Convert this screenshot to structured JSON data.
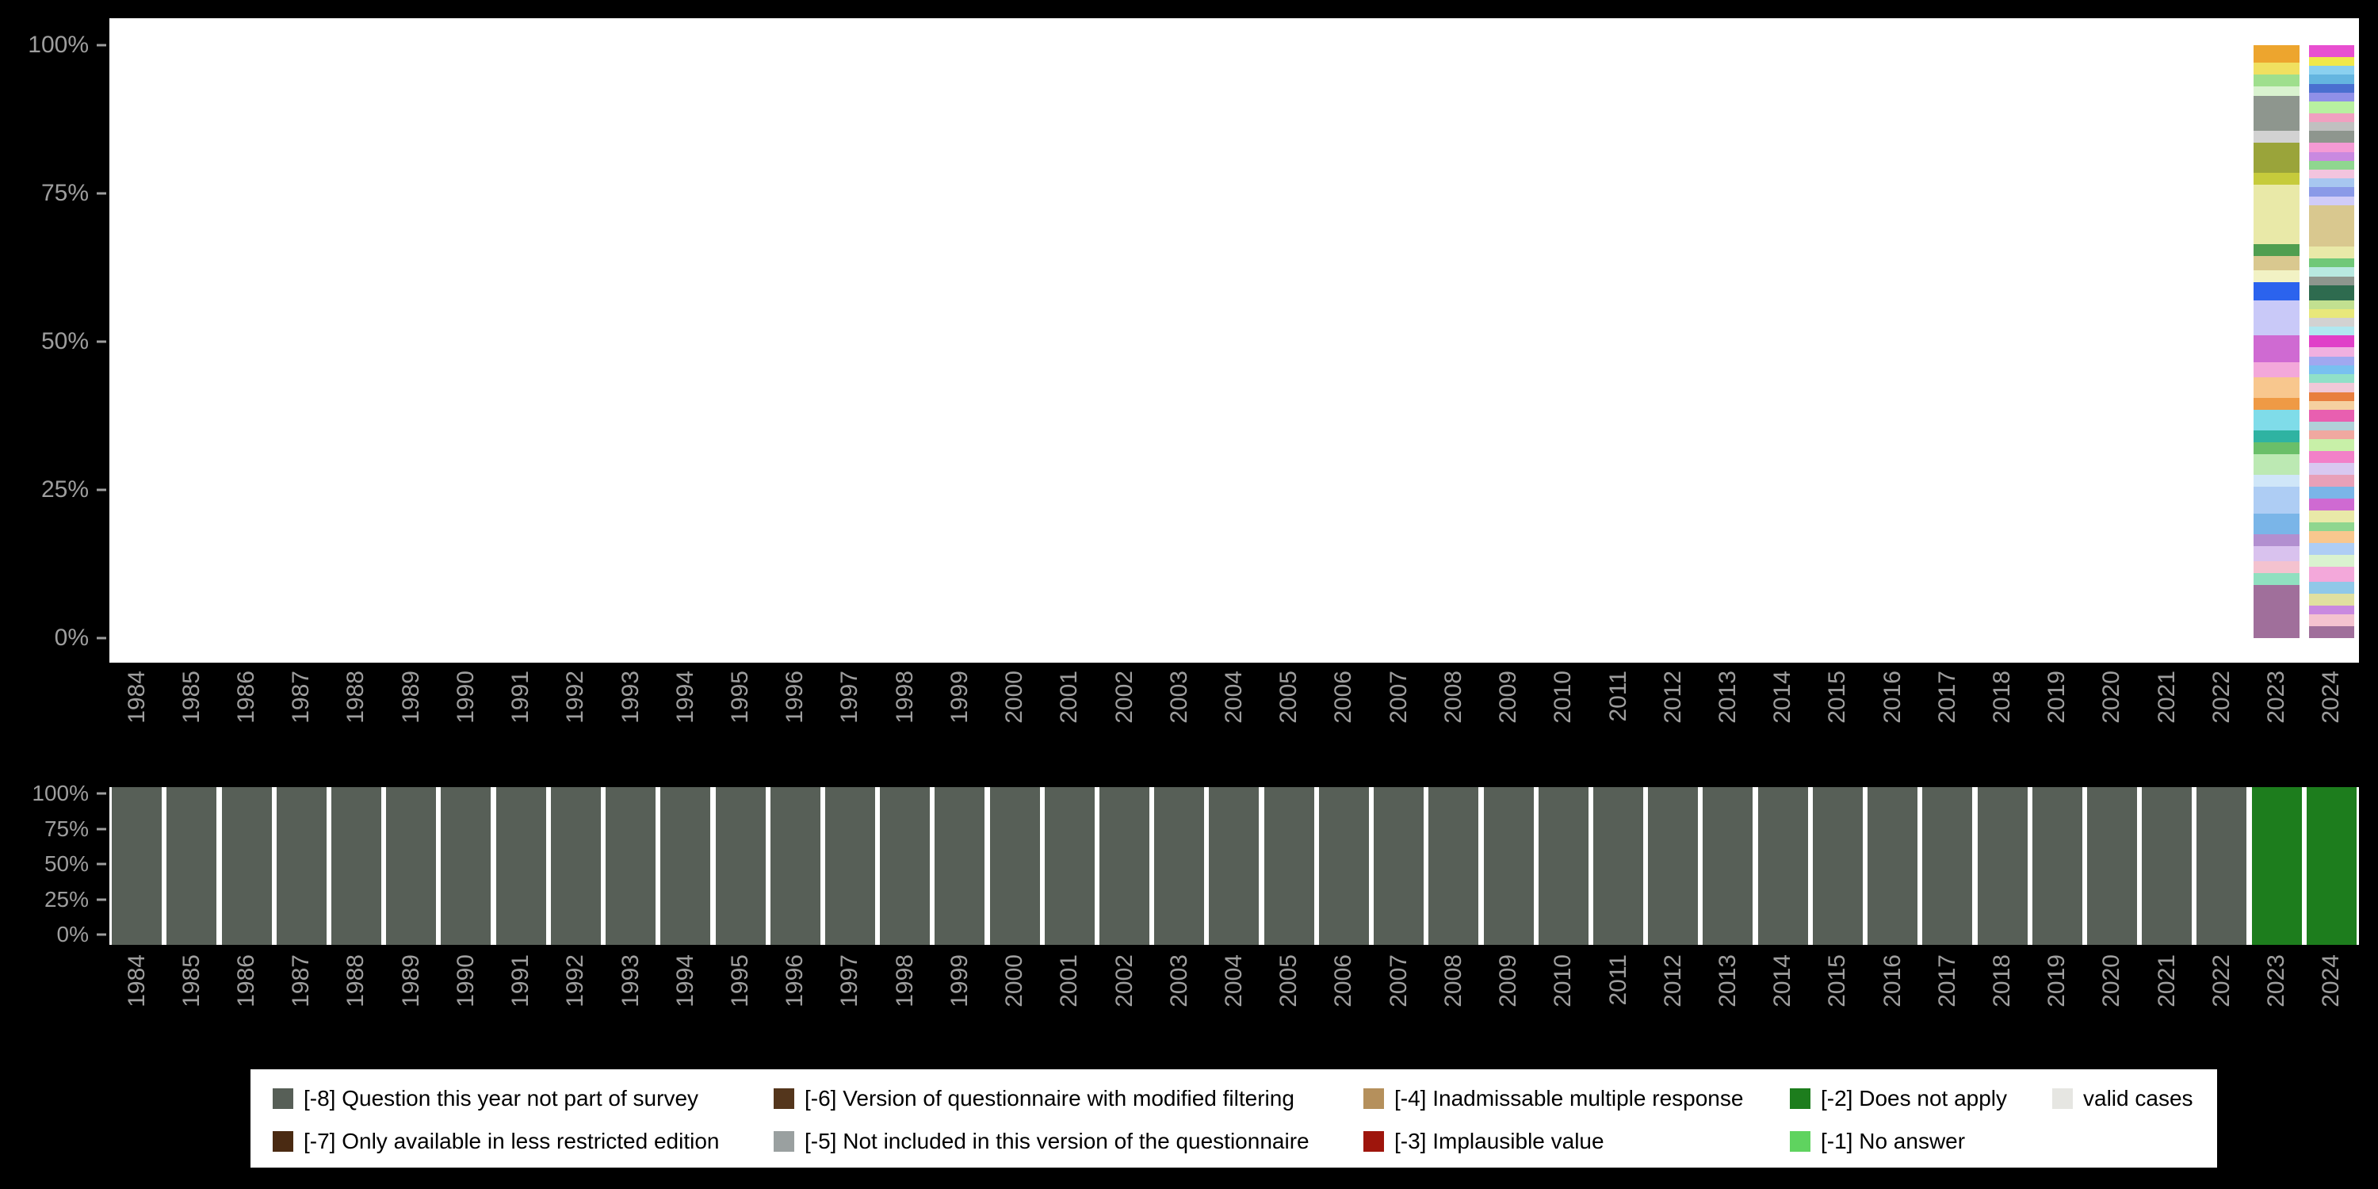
{
  "page": {
    "background": "#000000",
    "plot_background": "#ffffff",
    "axis_label_color": "#9e9e9e"
  },
  "axes": {
    "y_ticks": [
      "100%",
      "75%",
      "50%",
      "25%",
      "0%"
    ],
    "years": [
      "1984",
      "1985",
      "1986",
      "1987",
      "1988",
      "1989",
      "1990",
      "1991",
      "1992",
      "1993",
      "1994",
      "1995",
      "1996",
      "1997",
      "1998",
      "1999",
      "2000",
      "2001",
      "2002",
      "2003",
      "2004",
      "2005",
      "2006",
      "2007",
      "2008",
      "2009",
      "2010",
      "2011",
      "2012",
      "2013",
      "2014",
      "2015",
      "2016",
      "2017",
      "2018",
      "2019",
      "2020",
      "2021",
      "2022",
      "2023",
      "2024"
    ]
  },
  "legend": {
    "position": "bottom",
    "rows": [
      [
        {
          "label": "[-8] Question this year not part of survey",
          "color": "#575f57"
        },
        {
          "label": "[-6] Version of questionnaire with modified filtering",
          "color": "#54361c"
        },
        {
          "label": "[-4] Inadmissable multiple response",
          "color": "#b5905c"
        },
        {
          "label": "[-2] Does not apply",
          "color": "#1d7d1d"
        },
        {
          "label": "valid cases",
          "color": "#e6e6e2"
        }
      ],
      [
        {
          "label": "[-7] Only available in less restricted edition",
          "color": "#4a2a12"
        },
        {
          "label": "[-5] Not included in this version of the questionnaire",
          "color": "#9aa0a0"
        },
        {
          "label": "[-3] Implausible value",
          "color": "#9e150c"
        },
        {
          "label": "[-1] No answer",
          "color": "#5fd35f"
        }
      ]
    ]
  },
  "chart_data": [
    {
      "type": "bar",
      "subtype": "stacked-percentage",
      "id": "valid-category-distribution-by-year",
      "title": "",
      "xlabel": "",
      "ylabel": "",
      "ylim": [
        0,
        100
      ],
      "y_tick_labels": [
        "0%",
        "25%",
        "50%",
        "75%",
        "100%"
      ],
      "grid": false,
      "categories": [
        "1984",
        "1985",
        "1986",
        "1987",
        "1988",
        "1989",
        "1990",
        "1991",
        "1992",
        "1993",
        "1994",
        "1995",
        "1996",
        "1997",
        "1998",
        "1999",
        "2000",
        "2001",
        "2002",
        "2003",
        "2004",
        "2005",
        "2006",
        "2007",
        "2008",
        "2009",
        "2010",
        "2011",
        "2012",
        "2013",
        "2014",
        "2015",
        "2016",
        "2017",
        "2018",
        "2019",
        "2020",
        "2021",
        "2022",
        "2023",
        "2024"
      ],
      "note": "Years 1984-2022 show no bar (question not part of survey). 2023 and 2024 show full 100% stacked bars of unlabeled response categories; segment values are approximate percentages read from the pixels, listed top to bottom.",
      "bars": [
        {
          "year": "2023",
          "segments": [
            {
              "color": "#eda52e",
              "value": 3
            },
            {
              "color": "#f0e060",
              "value": 2
            },
            {
              "color": "#9fdf8d",
              "value": 2
            },
            {
              "color": "#d9f2cf",
              "value": 1.5
            },
            {
              "color": "#8e968e",
              "value": 6
            },
            {
              "color": "#d2d2d2",
              "value": 2
            },
            {
              "color": "#9aa43a",
              "value": 5
            },
            {
              "color": "#c6cb3b",
              "value": 2
            },
            {
              "color": "#e9e9a8",
              "value": 10
            },
            {
              "color": "#4f9e50",
              "value": 2
            },
            {
              "color": "#d9c88f",
              "value": 2.5
            },
            {
              "color": "#f2f2c4",
              "value": 2
            },
            {
              "color": "#2b63ee",
              "value": 3
            },
            {
              "color": "#c9c9f8",
              "value": 6
            },
            {
              "color": "#cf6ad2",
              "value": 4.5
            },
            {
              "color": "#f3a8da",
              "value": 2.5
            },
            {
              "color": "#f8c78e",
              "value": 3.5
            },
            {
              "color": "#ef9a45",
              "value": 2
            },
            {
              "color": "#7fdce9",
              "value": 3.5
            },
            {
              "color": "#2fb3a2",
              "value": 2
            },
            {
              "color": "#6abf69",
              "value": 2
            },
            {
              "color": "#bce9b3",
              "value": 3.5
            },
            {
              "color": "#cfe6f8",
              "value": 2
            },
            {
              "color": "#aecdf4",
              "value": 4.5
            },
            {
              "color": "#7ab5e8",
              "value": 3.5
            },
            {
              "color": "#b28fd0",
              "value": 2
            },
            {
              "color": "#d9c2ee",
              "value": 2.5
            },
            {
              "color": "#f4c2cf",
              "value": 2
            },
            {
              "color": "#90e0c0",
              "value": 2
            },
            {
              "color": "#a06f9b",
              "value": 9
            }
          ]
        },
        {
          "year": "2024",
          "segments": [
            {
              "color": "#e84fd0",
              "value": 2
            },
            {
              "color": "#f0e84a",
              "value": 1.5
            },
            {
              "color": "#8ad0f0",
              "value": 1.5
            },
            {
              "color": "#64b5e0",
              "value": 1.5
            },
            {
              "color": "#4a6fd0",
              "value": 1.5
            },
            {
              "color": "#9090e8",
              "value": 1.5
            },
            {
              "color": "#b8f0a0",
              "value": 2
            },
            {
              "color": "#f0a0c0",
              "value": 1.5
            },
            {
              "color": "#c0c0c0",
              "value": 1.5
            },
            {
              "color": "#8e968e",
              "value": 2
            },
            {
              "color": "#f49ad4",
              "value": 1.5
            },
            {
              "color": "#c989e0",
              "value": 1.5
            },
            {
              "color": "#8fd68f",
              "value": 1.5
            },
            {
              "color": "#f2c4de",
              "value": 1.5
            },
            {
              "color": "#a7c7f0",
              "value": 1.5
            },
            {
              "color": "#8a9ae8",
              "value": 1.5
            },
            {
              "color": "#d0ccf8",
              "value": 1.5
            },
            {
              "color": "#d9c88f",
              "value": 7
            },
            {
              "color": "#e9e9a8",
              "value": 2
            },
            {
              "color": "#70c878",
              "value": 1.5
            },
            {
              "color": "#b8e8e0",
              "value": 1.5
            },
            {
              "color": "#8e968e",
              "value": 1.5
            },
            {
              "color": "#2e6b4f",
              "value": 2.5
            },
            {
              "color": "#c2e090",
              "value": 1.5
            },
            {
              "color": "#e8e87a",
              "value": 1.5
            },
            {
              "color": "#d2d2d2",
              "value": 1.5
            },
            {
              "color": "#b0e8f0",
              "value": 1.5
            },
            {
              "color": "#e040c8",
              "value": 2
            },
            {
              "color": "#f0b0e0",
              "value": 1.5
            },
            {
              "color": "#a0a8f0",
              "value": 1.5
            },
            {
              "color": "#78c0f0",
              "value": 1.5
            },
            {
              "color": "#90e0c8",
              "value": 1.5
            },
            {
              "color": "#f0c8d8",
              "value": 1.5
            },
            {
              "color": "#e87f3f",
              "value": 1.5
            },
            {
              "color": "#f5d0a0",
              "value": 1.5
            },
            {
              "color": "#e85fb0",
              "value": 2
            },
            {
              "color": "#b0d0d8",
              "value": 1.5
            },
            {
              "color": "#f0a8a0",
              "value": 1.5
            },
            {
              "color": "#c8f0a8",
              "value": 2
            },
            {
              "color": "#f280c8",
              "value": 2
            },
            {
              "color": "#d8c8f0",
              "value": 2
            },
            {
              "color": "#e8a0b8",
              "value": 2
            },
            {
              "color": "#7ab5e8",
              "value": 2
            },
            {
              "color": "#cf6ad2",
              "value": 2
            },
            {
              "color": "#e9e9a8",
              "value": 2
            },
            {
              "color": "#8fd68f",
              "value": 1.5
            },
            {
              "color": "#f8c78e",
              "value": 2
            },
            {
              "color": "#aecdf4",
              "value": 2
            },
            {
              "color": "#d9f2cf",
              "value": 2
            },
            {
              "color": "#f3a8da",
              "value": 2.5
            },
            {
              "color": "#90c8e8",
              "value": 2
            },
            {
              "color": "#e0e0a0",
              "value": 2
            },
            {
              "color": "#c989e0",
              "value": 1.5
            },
            {
              "color": "#f4c2cf",
              "value": 2
            },
            {
              "color": "#a06f9b",
              "value": 2
            }
          ]
        }
      ]
    },
    {
      "type": "bar",
      "subtype": "stacked-percentage",
      "id": "missing-codes-by-year",
      "title": "",
      "xlabel": "",
      "ylabel": "",
      "ylim": [
        0,
        100
      ],
      "y_tick_labels": [
        "0%",
        "25%",
        "50%",
        "75%",
        "100%"
      ],
      "grid": false,
      "categories": [
        "1984",
        "1985",
        "1986",
        "1987",
        "1988",
        "1989",
        "1990",
        "1991",
        "1992",
        "1993",
        "1994",
        "1995",
        "1996",
        "1997",
        "1998",
        "1999",
        "2000",
        "2001",
        "2002",
        "2003",
        "2004",
        "2005",
        "2006",
        "2007",
        "2008",
        "2009",
        "2010",
        "2011",
        "2012",
        "2013",
        "2014",
        "2015",
        "2016",
        "2017",
        "2018",
        "2019",
        "2020",
        "2021",
        "2022",
        "2023",
        "2024"
      ],
      "series": [
        {
          "name": "[-8] Question this year not part of survey",
          "color": "#575f57",
          "values": [
            100,
            100,
            100,
            100,
            100,
            100,
            100,
            100,
            100,
            100,
            100,
            100,
            100,
            100,
            100,
            100,
            100,
            100,
            100,
            100,
            100,
            100,
            100,
            100,
            100,
            100,
            100,
            100,
            100,
            100,
            100,
            100,
            100,
            100,
            100,
            100,
            100,
            100,
            100,
            0,
            0
          ]
        },
        {
          "name": "[-2] Does not apply",
          "color": "#1d7d1d",
          "values": [
            0,
            0,
            0,
            0,
            0,
            0,
            0,
            0,
            0,
            0,
            0,
            0,
            0,
            0,
            0,
            0,
            0,
            0,
            0,
            0,
            0,
            0,
            0,
            0,
            0,
            0,
            0,
            0,
            0,
            0,
            0,
            0,
            0,
            0,
            0,
            0,
            0,
            0,
            0,
            100,
            100
          ]
        }
      ]
    }
  ]
}
